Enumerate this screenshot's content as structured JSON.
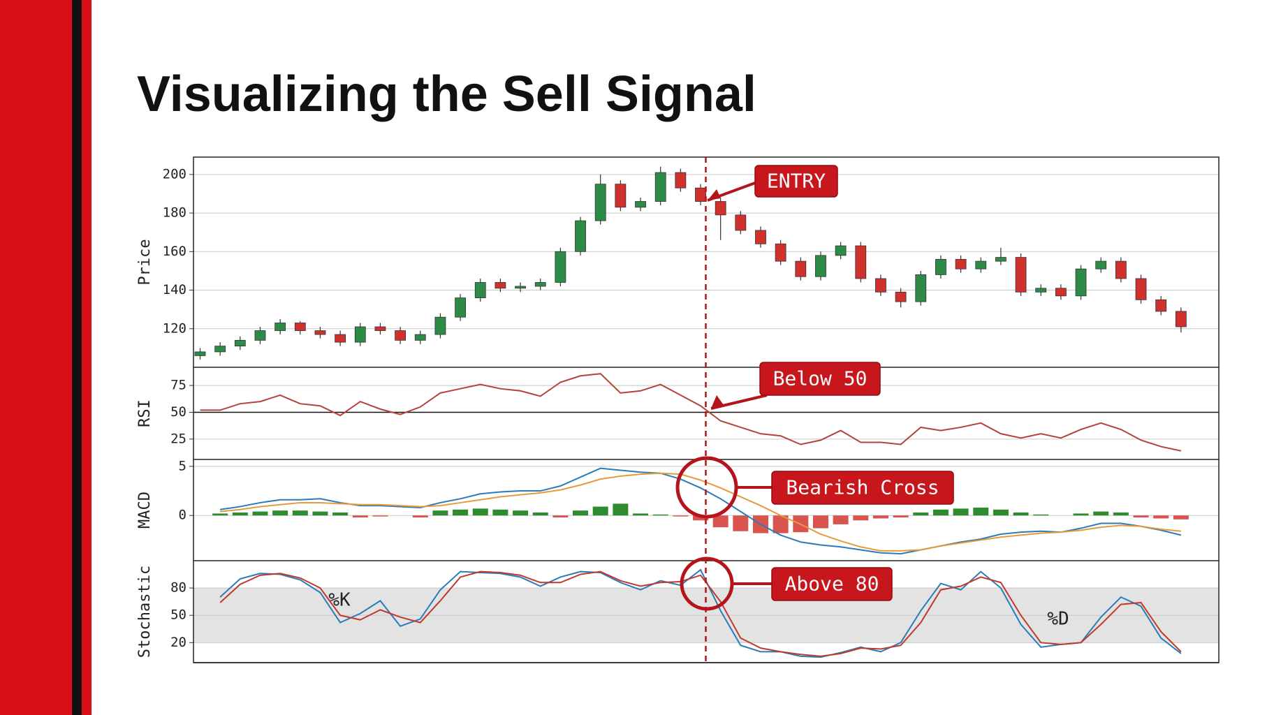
{
  "title": "Visualizing the Sell Signal",
  "chart_data": [
    {
      "type": "candlestick",
      "ylabel": "Price",
      "ylim": [
        100,
        209
      ],
      "yticks": [
        120,
        140,
        160,
        180,
        200
      ],
      "grid": true,
      "up_color": "#2e8b47",
      "down_color": "#d0312d",
      "annotation": "ENTRY",
      "open": [
        106,
        108,
        111,
        114,
        119,
        123,
        119,
        117,
        113,
        121,
        119,
        114,
        117,
        126,
        136,
        144,
        141,
        142,
        144,
        160,
        176,
        195,
        183,
        186,
        201,
        193,
        186,
        179,
        171,
        164,
        155,
        147,
        158,
        163,
        146,
        139,
        134,
        148,
        156,
        151,
        155,
        157,
        139,
        141,
        137,
        151,
        155,
        146,
        135,
        129
      ],
      "high": [
        110,
        113,
        116,
        121,
        125,
        124,
        121,
        119,
        123,
        123,
        121,
        119,
        128,
        138,
        146,
        146,
        144,
        146,
        162,
        178,
        200,
        197,
        188,
        204,
        203,
        195,
        188,
        181,
        173,
        166,
        157,
        160,
        165,
        165,
        148,
        141,
        150,
        158,
        158,
        157,
        162,
        159,
        143,
        143,
        153,
        157,
        157,
        148,
        137,
        131
      ],
      "low": [
        104,
        106,
        109,
        112,
        117,
        117,
        115,
        111,
        111,
        117,
        112,
        112,
        115,
        124,
        134,
        139,
        139,
        140,
        142,
        158,
        174,
        181,
        181,
        184,
        191,
        184,
        166,
        169,
        162,
        153,
        145,
        145,
        156,
        144,
        137,
        131,
        132,
        146,
        149,
        149,
        153,
        137,
        137,
        135,
        135,
        149,
        144,
        133,
        127,
        118
      ],
      "close": [
        108,
        111,
        114,
        119,
        123,
        119,
        117,
        113,
        121,
        119,
        114,
        117,
        126,
        136,
        144,
        141,
        142,
        144,
        160,
        176,
        195,
        183,
        186,
        201,
        193,
        186,
        179,
        171,
        164,
        155,
        147,
        158,
        163,
        146,
        139,
        134,
        148,
        156,
        151,
        155,
        157,
        139,
        141,
        137,
        151,
        155,
        146,
        135,
        129,
        121
      ]
    },
    {
      "type": "line",
      "ylabel": "RSI",
      "ylim": [
        6,
        92
      ],
      "yticks": [
        25,
        50,
        75
      ],
      "grid": true,
      "reference_line": 50,
      "annotation": "Below 50",
      "series": [
        {
          "color": "#b5413b",
          "values": [
            52,
            52,
            58,
            60,
            66,
            58,
            56,
            47,
            60,
            53,
            48,
            55,
            68,
            72,
            76,
            72,
            70,
            65,
            78,
            84,
            86,
            68,
            70,
            76,
            66,
            56,
            42,
            36,
            30,
            28,
            20,
            24,
            33,
            22,
            22,
            20,
            36,
            33,
            36,
            40,
            30,
            26,
            30,
            26,
            34,
            40,
            34,
            24,
            18,
            14
          ]
        }
      ]
    },
    {
      "type": "line",
      "ylabel": "MACD",
      "ylim": [
        -4.6,
        5.7
      ],
      "yticks": [
        0,
        5
      ],
      "grid": true,
      "annotation": "Bearish Cross",
      "series": [
        {
          "style": "bar",
          "pos_color": "#2e8b2e",
          "neg_color": "#d9534f",
          "values": [
            null,
            0.2,
            0.3,
            0.4,
            0.5,
            0.5,
            0.4,
            0.3,
            -0.2,
            -0.1,
            0.0,
            -0.2,
            0.5,
            0.6,
            0.7,
            0.6,
            0.5,
            0.3,
            -0.2,
            0.5,
            0.9,
            1.2,
            0.2,
            0.1,
            -0.1,
            -0.5,
            -1.2,
            -1.6,
            -1.8,
            -1.8,
            -1.7,
            -1.3,
            -0.9,
            -0.5,
            -0.3,
            -0.2,
            0.3,
            0.6,
            0.7,
            0.8,
            0.6,
            0.3,
            0.1,
            0.0,
            0.2,
            0.4,
            0.3,
            -0.2,
            -0.3,
            -0.4
          ]
        },
        {
          "color": "#2b7bb9",
          "values": [
            null,
            0.6,
            0.9,
            1.3,
            1.6,
            1.6,
            1.7,
            1.3,
            1.0,
            1.0,
            0.9,
            0.8,
            1.3,
            1.7,
            2.2,
            2.4,
            2.5,
            2.5,
            3.0,
            3.9,
            4.8,
            4.6,
            4.4,
            4.3,
            3.7,
            2.8,
            1.7,
            0.4,
            -0.9,
            -2.0,
            -2.7,
            -3.0,
            -3.2,
            -3.5,
            -3.8,
            -3.9,
            -3.5,
            -3.1,
            -2.7,
            -2.4,
            -1.9,
            -1.7,
            -1.6,
            -1.7,
            -1.3,
            -0.8,
            -0.8,
            -1.1,
            -1.5,
            -2.0
          ]
        },
        {
          "color": "#e69a3a",
          "values": [
            null,
            0.4,
            0.6,
            0.9,
            1.1,
            1.3,
            1.3,
            1.2,
            1.1,
            1.1,
            1.0,
            0.9,
            1.0,
            1.3,
            1.6,
            1.9,
            2.1,
            2.3,
            2.6,
            3.1,
            3.7,
            4.0,
            4.2,
            4.3,
            4.2,
            3.6,
            2.8,
            1.9,
            1.0,
            0.0,
            -0.9,
            -1.9,
            -2.6,
            -3.2,
            -3.6,
            -3.6,
            -3.5,
            -3.1,
            -2.8,
            -2.5,
            -2.2,
            -2.0,
            -1.8,
            -1.7,
            -1.5,
            -1.2,
            -1.0,
            -1.1,
            -1.4,
            -1.6
          ]
        }
      ]
    },
    {
      "type": "line",
      "ylabel": "Stochastic",
      "ylim": [
        -2,
        110
      ],
      "yticks": [
        20,
        50,
        80
      ],
      "grid": true,
      "band": [
        20,
        80
      ],
      "band_color": "#e3e3e3",
      "annotation": "Above 80",
      "series": [
        {
          "name": "%K",
          "color": "#2b7bb9",
          "values": [
            null,
            70,
            90,
            96,
            95,
            89,
            75,
            42,
            52,
            66,
            38,
            46,
            78,
            98,
            97,
            96,
            92,
            82,
            92,
            98,
            97,
            86,
            78,
            88,
            83,
            100,
            55,
            17,
            10,
            10,
            5,
            4,
            9,
            15,
            10,
            20,
            55,
            85,
            78,
            98,
            80,
            40,
            15,
            18,
            20,
            48,
            70,
            60,
            25,
            8
          ]
        },
        {
          "name": "%D",
          "color": "#c0392b",
          "values": [
            null,
            64,
            84,
            94,
            96,
            91,
            80,
            50,
            45,
            56,
            48,
            42,
            66,
            92,
            98,
            97,
            94,
            86,
            86,
            95,
            98,
            88,
            82,
            86,
            87,
            94,
            65,
            25,
            14,
            10,
            7,
            5,
            8,
            14,
            13,
            17,
            42,
            78,
            82,
            92,
            86,
            50,
            20,
            18,
            20,
            40,
            62,
            64,
            32,
            10
          ]
        }
      ]
    }
  ]
}
